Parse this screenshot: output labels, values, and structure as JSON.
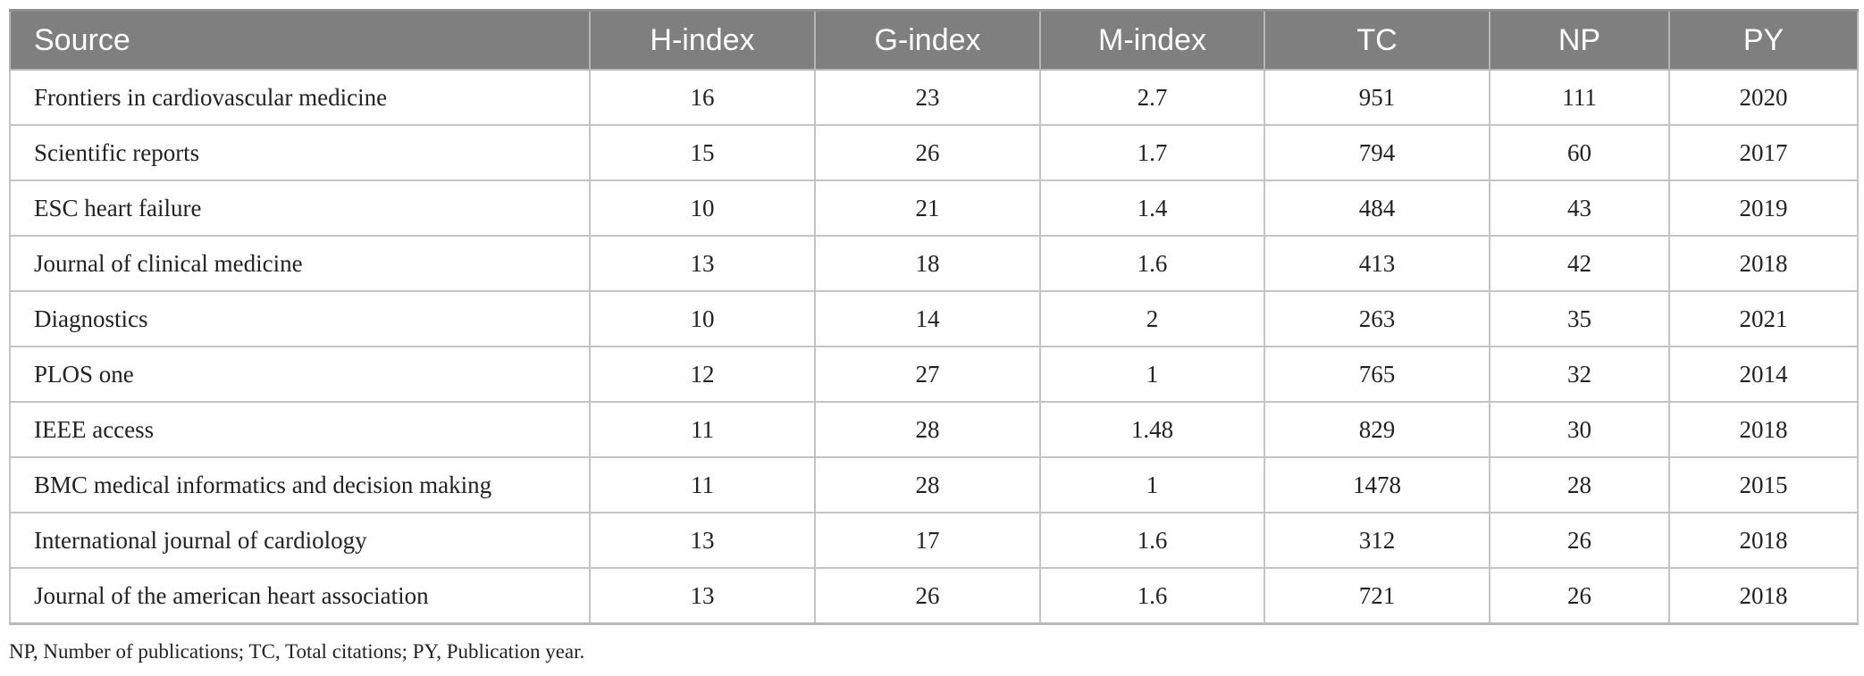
{
  "table": {
    "headers": [
      "Source",
      "H-index",
      "G-index",
      "M-index",
      "TC",
      "NP",
      "PY"
    ],
    "rows": [
      [
        "Frontiers in cardiovascular medicine",
        "16",
        "23",
        "2.7",
        "951",
        "111",
        "2020"
      ],
      [
        "Scientific reports",
        "15",
        "26",
        "1.7",
        "794",
        "60",
        "2017"
      ],
      [
        "ESC heart failure",
        "10",
        "21",
        "1.4",
        "484",
        "43",
        "2019"
      ],
      [
        "Journal of clinical medicine",
        "13",
        "18",
        "1.6",
        "413",
        "42",
        "2018"
      ],
      [
        "Diagnostics",
        "10",
        "14",
        "2",
        "263",
        "35",
        "2021"
      ],
      [
        "PLOS one",
        "12",
        "27",
        "1",
        "765",
        "32",
        "2014"
      ],
      [
        "IEEE access",
        "11",
        "28",
        "1.48",
        "829",
        "30",
        "2018"
      ],
      [
        "BMC medical informatics and decision making",
        "11",
        "28",
        "1",
        "1478",
        "28",
        "2015"
      ],
      [
        "International journal of cardiology",
        "13",
        "17",
        "1.6",
        "312",
        "26",
        "2018"
      ],
      [
        "Journal of the american heart association",
        "13",
        "26",
        "1.6",
        "721",
        "26",
        "2018"
      ]
    ]
  },
  "footnote": "NP, Number of publications; TC, Total citations; PY, Publication year."
}
